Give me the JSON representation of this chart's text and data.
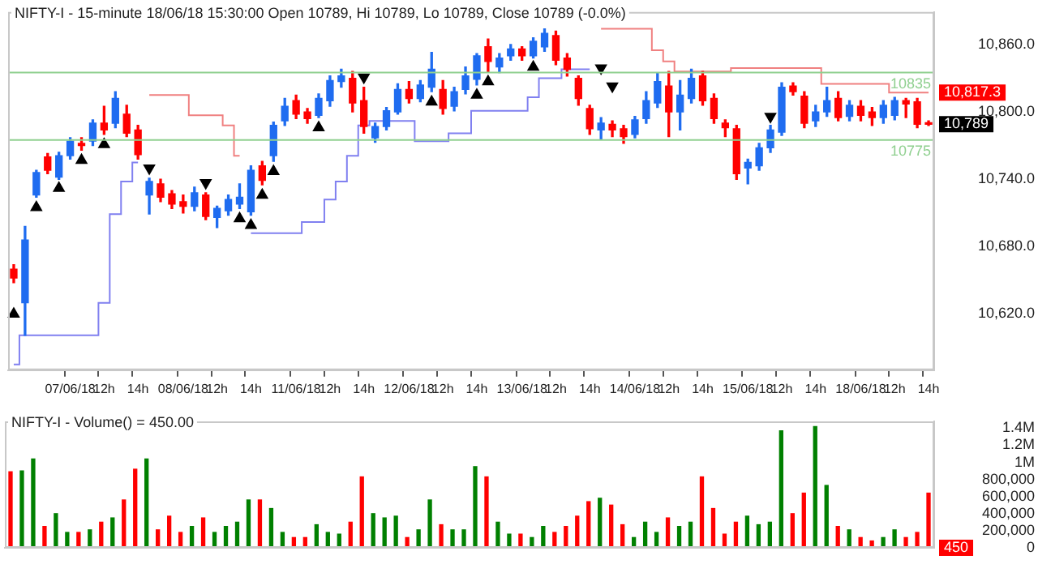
{
  "chart_data": [
    {
      "type": "candlestick",
      "title": "NIFTY-I - 15-minute 18/06/18 15:30:00 Open 10789, Hi 10789, Lo 10789, Close 10789 (-0.0%)",
      "categories": [
        null,
        null,
        null,
        null,
        null,
        "07/06/18",
        null,
        null,
        "12h",
        null,
        null,
        "14h",
        null,
        null,
        null,
        "08/06/18",
        null,
        null,
        "12h",
        null,
        null,
        "14h",
        null,
        null,
        null,
        "11/06/18",
        null,
        null,
        "12h",
        null,
        null,
        "14h",
        null,
        null,
        null,
        "12/06/18",
        null,
        null,
        "12h",
        null,
        null,
        "14h",
        null,
        null,
        null,
        "13/06/18",
        null,
        null,
        "12h",
        null,
        null,
        "14h",
        null,
        null,
        null,
        "14/06/18",
        null,
        null,
        "12h",
        null,
        null,
        "14h",
        null,
        null,
        null,
        "15/06/18",
        null,
        null,
        "12h",
        null,
        null,
        "14h",
        null,
        null,
        null,
        "18/06/18",
        null,
        null,
        "12h",
        null,
        null,
        "14h"
      ],
      "ohlc": [
        [
          10660,
          10664,
          10648,
          10652
        ],
        [
          10630,
          10698,
          10601,
          10686
        ],
        [
          10726,
          10748,
          10724,
          10746
        ],
        [
          10760,
          10763,
          10745,
          10748
        ],
        [
          10742,
          10764,
          10740,
          10761
        ],
        [
          10761,
          10777,
          10758,
          10774
        ],
        [
          10772,
          10777,
          10766,
          10770
        ],
        [
          10774,
          10793,
          10770,
          10790
        ],
        [
          10790,
          10805,
          10780,
          10784
        ],
        [
          10790,
          10818,
          10786,
          10812
        ],
        [
          10798,
          10806,
          10778,
          10781
        ],
        [
          10784,
          10788,
          10758,
          10762
        ],
        [
          10726,
          10741,
          10709,
          10738
        ],
        [
          10736,
          10740,
          10720,
          10724
        ],
        [
          10727,
          10730,
          10714,
          10718
        ],
        [
          10720,
          10726,
          10710,
          10716
        ],
        [
          10716,
          10733,
          10712,
          10728
        ],
        [
          10726,
          10728,
          10704,
          10707
        ],
        [
          10706,
          10716,
          10697,
          10714
        ],
        [
          10712,
          10726,
          10708,
          10722
        ],
        [
          10718,
          10736,
          10714,
          10724
        ],
        [
          10711,
          10752,
          10708,
          10748
        ],
        [
          10752,
          10756,
          10735,
          10739
        ],
        [
          10761,
          10791,
          10756,
          10788
        ],
        [
          10792,
          10812,
          10788,
          10805
        ],
        [
          10810,
          10815,
          10794,
          10798
        ],
        [
          10800,
          10803,
          10790,
          10794
        ],
        [
          10797,
          10816,
          10795,
          10812
        ],
        [
          10810,
          10832,
          10805,
          10828
        ],
        [
          10827,
          10838,
          10822,
          10832
        ],
        [
          10830,
          10836,
          10800,
          10808
        ],
        [
          10810,
          10822,
          10781,
          10787
        ],
        [
          10777,
          10790,
          10773,
          10787
        ],
        [
          10787,
          10804,
          10784,
          10801
        ],
        [
          10800,
          10825,
          10798,
          10820
        ],
        [
          10820,
          10827,
          10808,
          10812
        ],
        [
          10812,
          10828,
          10809,
          10824
        ],
        [
          10822,
          10853,
          10818,
          10838
        ],
        [
          10820,
          10828,
          10798,
          10803
        ],
        [
          10805,
          10822,
          10801,
          10818
        ],
        [
          10820,
          10840,
          10816,
          10832
        ],
        [
          10829,
          10852,
          10824,
          10850
        ],
        [
          10858,
          10865,
          10836,
          10845
        ],
        [
          10840,
          10852,
          10835,
          10848
        ],
        [
          10850,
          10860,
          10846,
          10856
        ],
        [
          10856,
          10858,
          10846,
          10850
        ],
        [
          10850,
          10866,
          10848,
          10863
        ],
        [
          10858,
          10874,
          10854,
          10870
        ],
        [
          10868,
          10872,
          10842,
          10846
        ],
        [
          10848,
          10852,
          10832,
          10838
        ],
        [
          10830,
          10832,
          10806,
          10812
        ],
        [
          10803,
          10806,
          10780,
          10785
        ],
        [
          10784,
          10795,
          10776,
          10790
        ],
        [
          10789,
          10792,
          10778,
          10784
        ],
        [
          10785,
          10788,
          10772,
          10778
        ],
        [
          10780,
          10796,
          10777,
          10793
        ],
        [
          10794,
          10818,
          10790,
          10810
        ],
        [
          10808,
          10835,
          10804,
          10827
        ],
        [
          10823,
          10836,
          10778,
          10800
        ],
        [
          10800,
          10828,
          10784,
          10815
        ],
        [
          10812,
          10838,
          10808,
          10830
        ],
        [
          10832,
          10836,
          10806,
          10810
        ],
        [
          10812,
          10816,
          10790,
          10794
        ],
        [
          10790,
          10793,
          10778,
          10786
        ],
        [
          10785,
          10788,
          10740,
          10745
        ],
        [
          10750,
          10758,
          10736,
          10755
        ],
        [
          10752,
          10772,
          10748,
          10768
        ],
        [
          10768,
          10788,
          10764,
          10784
        ],
        [
          10782,
          10826,
          10779,
          10822
        ],
        [
          10823,
          10826,
          10815,
          10818
        ],
        [
          10814,
          10818,
          10786,
          10790
        ],
        [
          10792,
          10806,
          10787,
          10800
        ],
        [
          10800,
          10822,
          10796,
          10810
        ],
        [
          10812,
          10818,
          10792,
          10795
        ],
        [
          10796,
          10810,
          10792,
          10806
        ],
        [
          10805,
          10810,
          10792,
          10797
        ],
        [
          10800,
          10804,
          10788,
          10795
        ],
        [
          10795,
          10810,
          10790,
          10806
        ],
        [
          10797,
          10813,
          10793,
          10810
        ],
        [
          10810,
          10812,
          10795,
          10807
        ],
        [
          10809,
          10812,
          10786,
          10789
        ],
        [
          10790,
          10792,
          10788,
          10789
        ]
      ],
      "colors": [
        "#ff0000",
        "#1f6cf0",
        "#1f6cf0",
        "#ff0000",
        "#1f6cf0",
        "#1f6cf0",
        "#ff0000",
        "#1f6cf0",
        "#ff0000",
        "#1f6cf0",
        "#ff0000",
        "#ff0000",
        "#1f6cf0",
        "#ff0000",
        "#ff0000",
        "#ff0000",
        "#1f6cf0",
        "#ff0000",
        "#1f6cf0",
        "#1f6cf0",
        "#1f6cf0",
        "#1f6cf0",
        "#ff0000",
        "#1f6cf0",
        "#1f6cf0",
        "#ff0000",
        "#ff0000",
        "#1f6cf0",
        "#1f6cf0",
        "#1f6cf0",
        "#ff0000",
        "#ff0000",
        "#1f6cf0",
        "#1f6cf0",
        "#1f6cf0",
        "#ff0000",
        "#1f6cf0",
        "#1f6cf0",
        "#ff0000",
        "#1f6cf0",
        "#1f6cf0",
        "#1f6cf0",
        "#ff0000",
        "#1f6cf0",
        "#1f6cf0",
        "#ff0000",
        "#1f6cf0",
        "#1f6cf0",
        "#ff0000",
        "#ff0000",
        "#ff0000",
        "#ff0000",
        "#1f6cf0",
        "#ff0000",
        "#ff0000",
        "#1f6cf0",
        "#1f6cf0",
        "#1f6cf0",
        "#ff0000",
        "#1f6cf0",
        "#1f6cf0",
        "#ff0000",
        "#ff0000",
        "#ff0000",
        "#ff0000",
        "#1f6cf0",
        "#1f6cf0",
        "#1f6cf0",
        "#1f6cf0",
        "#ff0000",
        "#ff0000",
        "#1f6cf0",
        "#1f6cf0",
        "#ff0000",
        "#1f6cf0",
        "#ff0000",
        "#ff0000",
        "#1f6cf0",
        "#1f6cf0",
        "#ff0000",
        "#ff0000",
        "#ff0000"
      ],
      "series": [
        {
          "type": "step",
          "color": "#f08080",
          "values": [
            null,
            null,
            null,
            null,
            null,
            null,
            null,
            null,
            null,
            null,
            null,
            null,
            10815,
            10815,
            10815,
            10815,
            10797,
            10797,
            10797,
            10788,
            10761,
            null,
            null,
            null,
            null,
            null,
            null,
            null,
            null,
            null,
            null,
            null,
            null,
            null,
            null,
            null,
            null,
            null,
            null,
            null,
            null,
            null,
            null,
            null,
            null,
            null,
            null,
            null,
            null,
            null,
            null,
            null,
            10874,
            10874,
            10874,
            10874,
            10874,
            10855,
            10845,
            10836,
            10836,
            10836,
            10836,
            10836,
            10839,
            10839,
            10839,
            10839,
            10839,
            10839,
            10839,
            10839,
            10825,
            10825,
            10825,
            10825,
            10825,
            10825,
            10817.3,
            10817.3,
            10817.3,
            10817.3
          ]
        },
        {
          "type": "step",
          "color": "#8080f0",
          "values": [
            10575,
            10601,
            10601,
            10601,
            10601,
            10601,
            10601,
            10601,
            10630,
            10709,
            10738,
            10755,
            null,
            null,
            null,
            null,
            null,
            null,
            null,
            null,
            null,
            10692,
            10692,
            10692,
            10692,
            10692,
            10702,
            10702,
            10722,
            10738,
            10761,
            10788,
            10792,
            10792,
            10792,
            10792,
            10774,
            10774,
            10774,
            10781,
            10781,
            10801,
            10801,
            10801,
            10801,
            10801,
            10813,
            10830,
            10830,
            10838,
            10838,
            10838,
            null,
            null,
            null,
            null,
            null,
            null,
            null,
            null,
            null,
            null,
            null,
            null,
            null,
            null,
            null,
            null,
            null,
            null,
            null,
            null,
            null,
            null,
            null,
            null,
            null,
            null,
            null,
            null,
            null,
            null
          ]
        },
        {
          "type": "scatter",
          "color": "#000000",
          "marker": "triangle",
          "values": [
            10620,
            null,
            10715,
            null,
            10732,
            null,
            10757,
            null,
            10771,
            null,
            null,
            null,
            10750,
            null,
            null,
            null,
            null,
            10737,
            null,
            null,
            10705,
            10699,
            10726,
            10747,
            null,
            null,
            null,
            10786,
            null,
            null,
            null,
            10831,
            null,
            null,
            null,
            null,
            null,
            10809,
            null,
            null,
            null,
            10815,
            10827,
            null,
            null,
            null,
            10840,
            null,
            null,
            null,
            null,
            null,
            10839,
            10823,
            null,
            null,
            null,
            null,
            null,
            null,
            null,
            null,
            null,
            null,
            null,
            null,
            null,
            10796,
            null,
            null,
            null,
            null,
            null,
            null,
            null,
            null,
            null,
            null,
            null,
            null,
            null,
            null
          ]
        }
      ],
      "ylim": [
        10570,
        10889
      ],
      "yticks": [
        {
          "value": 10620,
          "label": "10,620.0"
        },
        {
          "value": 10680,
          "label": "10,680.0"
        },
        {
          "value": 10740,
          "label": "10,740.0"
        },
        {
          "value": 10800,
          "label": "10,800.0"
        },
        {
          "value": 10860,
          "label": "10,860.0"
        }
      ],
      "ref_lines": [
        {
          "axis": "y",
          "value": 10835,
          "label": "10835",
          "color": "#90d090"
        },
        {
          "axis": "y",
          "value": 10775,
          "label": "10775",
          "color": "#90d090"
        }
      ],
      "annotations": [
        "10,817.3",
        "10,789"
      ],
      "legend": false,
      "grid": false
    },
    {
      "type": "bar",
      "title": "NIFTY-I - Volume() = 450.00",
      "categories": [
        null,
        null,
        null,
        null,
        null,
        null,
        null,
        null,
        null,
        null,
        null,
        null,
        null,
        null,
        null,
        null,
        null,
        null,
        null,
        null,
        null,
        null,
        null,
        null,
        null,
        null,
        null,
        null,
        null,
        null,
        null,
        null,
        null,
        null,
        null,
        null,
        null,
        null,
        null,
        null,
        null,
        null,
        null,
        null,
        null,
        null,
        null,
        null,
        null,
        null,
        null,
        null,
        null,
        null,
        null,
        null,
        null,
        null,
        null,
        null,
        null,
        null,
        null,
        null,
        null,
        null,
        null,
        null,
        null,
        null,
        null,
        null,
        null,
        null,
        null,
        null,
        null,
        null,
        null,
        null,
        null,
        null
      ],
      "values": [
        890000,
        900000,
        1040000,
        250000,
        400000,
        180000,
        180000,
        210000,
        300000,
        350000,
        560000,
        920000,
        1040000,
        210000,
        370000,
        180000,
        250000,
        350000,
        180000,
        250000,
        300000,
        560000,
        560000,
        460000,
        180000,
        120000,
        120000,
        270000,
        180000,
        160000,
        300000,
        830000,
        400000,
        350000,
        370000,
        120000,
        210000,
        560000,
        270000,
        210000,
        210000,
        950000,
        830000,
        300000,
        160000,
        160000,
        120000,
        250000,
        180000,
        250000,
        370000,
        540000,
        580000,
        500000,
        270000,
        120000,
        300000,
        180000,
        350000,
        250000,
        300000,
        830000,
        460000,
        160000,
        300000,
        370000,
        270000,
        300000,
        1370000,
        400000,
        640000,
        1420000,
        730000,
        250000,
        210000,
        120000,
        80000,
        120000,
        210000,
        120000,
        180000,
        640000
      ],
      "colors": [
        "#ff0000",
        "#008000",
        "#008000",
        "#ff0000",
        "#008000",
        "#008000",
        "#ff0000",
        "#008000",
        "#ff0000",
        "#008000",
        "#ff0000",
        "#ff0000",
        "#008000",
        "#ff0000",
        "#ff0000",
        "#ff0000",
        "#008000",
        "#ff0000",
        "#008000",
        "#008000",
        "#008000",
        "#008000",
        "#ff0000",
        "#008000",
        "#008000",
        "#ff0000",
        "#ff0000",
        "#008000",
        "#008000",
        "#008000",
        "#ff0000",
        "#ff0000",
        "#008000",
        "#008000",
        "#008000",
        "#ff0000",
        "#008000",
        "#008000",
        "#ff0000",
        "#008000",
        "#008000",
        "#008000",
        "#ff0000",
        "#008000",
        "#008000",
        "#ff0000",
        "#008000",
        "#008000",
        "#ff0000",
        "#ff0000",
        "#ff0000",
        "#ff0000",
        "#008000",
        "#ff0000",
        "#ff0000",
        "#008000",
        "#008000",
        "#008000",
        "#ff0000",
        "#008000",
        "#008000",
        "#ff0000",
        "#ff0000",
        "#ff0000",
        "#ff0000",
        "#008000",
        "#008000",
        "#008000",
        "#008000",
        "#ff0000",
        "#ff0000",
        "#008000",
        "#008000",
        "#ff0000",
        "#008000",
        "#ff0000",
        "#ff0000",
        "#008000",
        "#008000",
        "#ff0000",
        "#ff0000",
        "#ff0000"
      ],
      "ylim": [
        0,
        1480000
      ],
      "yticks": [
        0,
        {
          "value": 200000,
          "label": "200,000"
        },
        {
          "value": 400000,
          "label": "400,000"
        },
        {
          "value": 600000,
          "label": "600,000"
        },
        {
          "value": 800000,
          "label": "800,000"
        },
        {
          "value": 1000000,
          "label": "1M"
        },
        {
          "value": 1200000,
          "label": "1.2M"
        },
        {
          "value": 1400000,
          "label": "1.4M"
        }
      ],
      "annotations": [
        "450"
      ],
      "tick_labels": "y",
      "legend": false,
      "grid": false
    }
  ]
}
